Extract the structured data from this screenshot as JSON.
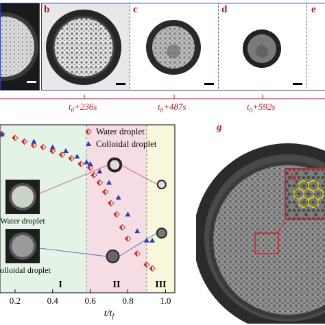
{
  "strip": {
    "panels": [
      {
        "label": ""
      },
      {
        "label": "b"
      },
      {
        "label": "c"
      },
      {
        "label": "d"
      },
      {
        "label": "e"
      }
    ],
    "times": [
      "t0+236s",
      "t0+487s",
      "t0+592s"
    ]
  },
  "chart_data": {
    "type": "scatter",
    "xlabel": "t/tf",
    "xlim": [
      0.12,
      1.05
    ],
    "xticks": [
      "0.2",
      "0.4",
      "0.6",
      "0.8",
      "1.0"
    ],
    "legend": {
      "placement": "top-right"
    },
    "series": [
      {
        "name": "Water droplet",
        "marker": "diamond",
        "color": "#d42b2b",
        "x": [
          0.13,
          0.2,
          0.25,
          0.3,
          0.35,
          0.4,
          0.45,
          0.5,
          0.55,
          0.6,
          0.62,
          0.65,
          0.68,
          0.71,
          0.74,
          0.77,
          0.8,
          0.85,
          0.9,
          0.93
        ],
        "y": [
          1.0,
          0.98,
          0.96,
          0.94,
          0.93,
          0.91,
          0.89,
          0.87,
          0.84,
          0.82,
          0.78,
          0.74,
          0.69,
          0.63,
          0.57,
          0.5,
          0.44,
          0.36,
          0.3,
          0.28
        ]
      },
      {
        "name": "Colloidal droplet",
        "marker": "triangle",
        "color": "#2b3fb0",
        "x": [
          0.13,
          0.3,
          0.4,
          0.47,
          0.53,
          0.58,
          0.6,
          0.65,
          0.7,
          0.75,
          0.8,
          0.85,
          0.9,
          0.93
        ],
        "y": [
          1.0,
          0.96,
          0.93,
          0.91,
          0.88,
          0.85,
          0.84,
          0.8,
          0.74,
          0.66,
          0.57,
          0.48,
          0.43,
          0.43
        ]
      }
    ],
    "regions": [
      {
        "label": "I",
        "from": 0.12,
        "to": 0.58,
        "color": "#e3f4e6"
      },
      {
        "label": "II",
        "from": 0.58,
        "to": 0.9,
        "color": "#f6dde3"
      },
      {
        "label": "III",
        "from": 0.9,
        "to": 1.05,
        "color": "#f9f7dc"
      }
    ],
    "insets": [
      "Water droplet",
      "Colloidal droplet"
    ]
  },
  "panel_g": {
    "label": "g",
    "inset_label": "h"
  },
  "colors": {
    "accent": "#b5122a",
    "frame": "#2b3fb0",
    "hex": "#e6e600"
  }
}
